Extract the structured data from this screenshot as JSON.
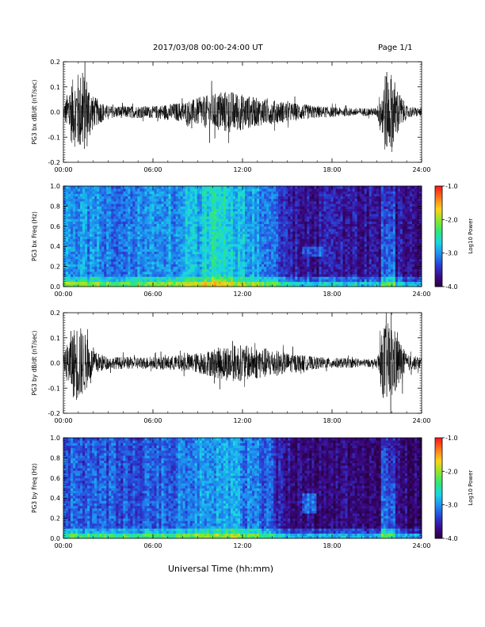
{
  "header": {
    "title": "2017/03/08   00:00-24:00 UT",
    "page": "Page 1/1"
  },
  "footer": {
    "xlabel": "Universal Time (hh:mm)"
  },
  "colors": {
    "spectrogram_scale": [
      "#2a0040",
      "#3b0a8a",
      "#2a3fd6",
      "#1e8ff0",
      "#19d6e6",
      "#2ee67a",
      "#8fe62a",
      "#ffd21a",
      "#ff7a1a",
      "#ff1a1a"
    ]
  },
  "chart_data": [
    {
      "type": "line",
      "panel": 1,
      "ylabel": "PG3 bx dB/dt (nT/sec)",
      "xlim": [
        0,
        24
      ],
      "ylim": [
        -0.2,
        0.2
      ],
      "x_ticks": [
        "00:00",
        "06:00",
        "12:00",
        "18:00",
        "24:00"
      ],
      "y_ticks": [
        "-0.2",
        "-0.1",
        "0.0",
        "0.1",
        "0.2"
      ],
      "envelope": {
        "hours": [
          0,
          0.5,
          1.0,
          1.5,
          2.0,
          3.0,
          4.0,
          5.0,
          6.0,
          7.0,
          8.0,
          9.0,
          10.0,
          11.0,
          11.5,
          12.0,
          13.0,
          14.0,
          15.0,
          16.0,
          17.0,
          18.0,
          19.0,
          20.0,
          21.0,
          21.5,
          22.0,
          22.5,
          23.0,
          24.0
        ],
        "amplitude": [
          0.03,
          0.15,
          0.2,
          0.2,
          0.08,
          0.03,
          0.03,
          0.03,
          0.03,
          0.04,
          0.05,
          0.07,
          0.09,
          0.11,
          0.1,
          0.09,
          0.07,
          0.06,
          0.05,
          0.04,
          0.03,
          0.025,
          0.02,
          0.02,
          0.02,
          0.2,
          0.2,
          0.1,
          0.03,
          0.02
        ]
      }
    },
    {
      "type": "heatmap",
      "panel": 2,
      "ylabel": "PG3 bx Freq (Hz)",
      "colorbar_label": "Log10 Power",
      "xlim": [
        0,
        24
      ],
      "ylim": [
        0.0,
        1.0
      ],
      "clim": [
        -4.0,
        -1.0
      ],
      "x_ticks": [
        "00:00",
        "06:00",
        "12:00",
        "18:00",
        "24:00"
      ],
      "y_ticks": [
        "0.0",
        "0.2",
        "0.4",
        "0.6",
        "0.8",
        "1.0"
      ],
      "colorbar_ticks": [
        "-1.0",
        "-2.0",
        "-3.0",
        "-4.0"
      ],
      "background_power": {
        "hours": [
          0,
          3,
          6,
          9,
          10,
          12,
          14,
          15,
          16,
          18,
          20,
          22,
          24
        ],
        "log_power": [
          -3.0,
          -3.05,
          -3.05,
          -2.8,
          -2.6,
          -2.75,
          -3.1,
          -3.5,
          -3.6,
          -3.6,
          -3.65,
          -3.6,
          -3.7
        ]
      }
    },
    {
      "type": "line",
      "panel": 3,
      "ylabel": "PG3 by dB/dt (nT/sec)",
      "xlim": [
        0,
        24
      ],
      "ylim": [
        -0.2,
        0.2
      ],
      "x_ticks": [
        "00:00",
        "06:00",
        "12:00",
        "18:00",
        "24:00"
      ],
      "y_ticks": [
        "-0.2",
        "-0.1",
        "0.0",
        "0.1",
        "0.2"
      ],
      "envelope": {
        "hours": [
          0,
          0.5,
          1.0,
          1.5,
          2.0,
          3.0,
          4.0,
          5.0,
          6.0,
          7.0,
          8.0,
          9.0,
          10.0,
          11.0,
          11.5,
          12.0,
          13.0,
          14.0,
          15.0,
          16.0,
          17.0,
          18.0,
          19.0,
          20.0,
          21.0,
          21.5,
          22.0,
          22.5,
          23.0,
          24.0
        ],
        "amplitude": [
          0.03,
          0.16,
          0.2,
          0.14,
          0.06,
          0.03,
          0.03,
          0.03,
          0.03,
          0.035,
          0.04,
          0.05,
          0.07,
          0.09,
          0.09,
          0.09,
          0.08,
          0.07,
          0.05,
          0.04,
          0.03,
          0.025,
          0.025,
          0.02,
          0.02,
          0.2,
          0.2,
          0.12,
          0.04,
          0.03
        ]
      }
    },
    {
      "type": "heatmap",
      "panel": 4,
      "ylabel": "PG3 by Freq (Hz)",
      "colorbar_label": "Log10 Power",
      "xlim": [
        0,
        24
      ],
      "ylim": [
        0.0,
        1.0
      ],
      "clim": [
        -4.0,
        -1.0
      ],
      "x_ticks": [
        "00:00",
        "06:00",
        "12:00",
        "18:00",
        "24:00"
      ],
      "y_ticks": [
        "0.0",
        "0.2",
        "0.4",
        "0.6",
        "0.8",
        "1.0"
      ],
      "colorbar_ticks": [
        "-1.0",
        "-2.0",
        "-3.0",
        "-4.0"
      ],
      "background_power": {
        "hours": [
          0,
          3,
          6,
          9,
          10,
          12,
          14,
          15,
          16,
          18,
          20,
          22,
          24
        ],
        "log_power": [
          -3.2,
          -3.25,
          -3.25,
          -3.0,
          -2.85,
          -3.0,
          -3.3,
          -3.6,
          -3.75,
          -3.75,
          -3.75,
          -3.7,
          -3.85
        ]
      }
    }
  ]
}
